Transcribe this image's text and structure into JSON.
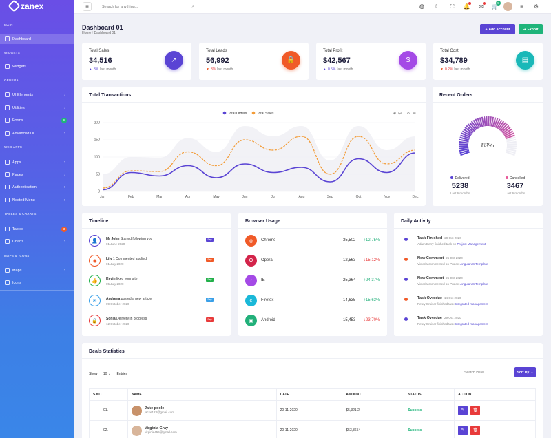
{
  "brand": "zanex",
  "search": {
    "placeholder": "Search for anything..."
  },
  "topbar": {
    "badges": {
      "notifications": "",
      "messages": "",
      "cart": "5"
    }
  },
  "sidebar": {
    "sections": [
      "MAIN",
      "WIDGETS",
      "GENERAL",
      "WEB APPS",
      "TABLES & CHARTS",
      "MAPS & ICONS"
    ],
    "items": [
      {
        "label": "Dashboard",
        "chev": "",
        "badge": ""
      },
      {
        "label": "Widgets",
        "chev": "",
        "badge": ""
      },
      {
        "label": "UI Elements",
        "chev": "›",
        "badge": ""
      },
      {
        "label": "Utilities",
        "chev": "›",
        "badge": ""
      },
      {
        "label": "Forms",
        "chev": "",
        "badge": "6"
      },
      {
        "label": "Advanced UI",
        "chev": "›",
        "badge": ""
      },
      {
        "label": "Apps",
        "chev": "›",
        "badge": ""
      },
      {
        "label": "Pages",
        "chev": "›",
        "badge": ""
      },
      {
        "label": "Authentication",
        "chev": "›",
        "badge": ""
      },
      {
        "label": "Nested Menu",
        "chev": "›",
        "badge": ""
      },
      {
        "label": "Tables",
        "chev": "",
        "badge": "3"
      },
      {
        "label": "Charts",
        "chev": "›",
        "badge": ""
      },
      {
        "label": "Maps",
        "chev": "›",
        "badge": ""
      },
      {
        "label": "Icons",
        "chev": "",
        "badge": ""
      }
    ]
  },
  "page": {
    "title": "Dashboard 01",
    "crumb_home": "Home",
    "crumb_sep": "/",
    "crumb_current": "Dashboard 01",
    "add_account": "Add Account",
    "export": "Export"
  },
  "stats": [
    {
      "label": "Total Sales",
      "value": "34,516",
      "arrow": "▲",
      "change": "3%",
      "suffix": "last month",
      "icon": "↗",
      "color": "#5a44d4"
    },
    {
      "label": "Total Leads",
      "value": "56,992",
      "arrow": "▼",
      "change": "3%",
      "suffix": "last month",
      "icon": "🔒",
      "color": "#f05a28"
    },
    {
      "label": "Total Profit",
      "value": "$42,567",
      "arrow": "▲",
      "change": "0.5%",
      "suffix": "last month",
      "icon": "$",
      "color": "#a44ae6"
    },
    {
      "label": "Total Cost",
      "value": "$34,789",
      "arrow": "▼",
      "change": "0.2%",
      "suffix": "last month",
      "icon": "▤",
      "color": "#1ab8b8"
    }
  ],
  "transactions": {
    "title": "Total Transactions"
  },
  "chart_data": {
    "type": "line",
    "title": "Total Transactions",
    "categories": [
      "Jan",
      "Feb",
      "Mar",
      "Apr",
      "May",
      "Jun",
      "Jul",
      "Aug",
      "Sep",
      "Oct",
      "Nov",
      "Dec"
    ],
    "yticks": [
      "0",
      "50",
      "100",
      "150",
      "200"
    ],
    "ylim": [
      0,
      200
    ],
    "series": [
      {
        "name": "Total Orders",
        "color": "#5a44d4",
        "values": [
          5,
          55,
          45,
          75,
          40,
          80,
          55,
          70,
          28,
          95,
          55,
          112
        ]
      },
      {
        "name": "Total Sales",
        "color": "#f39c38",
        "values": [
          10,
          60,
          58,
          115,
          75,
          150,
          120,
          160,
          50,
          160,
          80,
          120
        ]
      }
    ],
    "legend": "top-center"
  },
  "recent_orders": {
    "title": "Recent Orders",
    "percent": "83%",
    "delivered_label": "Delivered",
    "delivered_value": "5238",
    "delivered_sub": "Last 6 months",
    "cancelled_label": "Cancelled",
    "cancelled_value": "3467",
    "cancelled_sub": "Last 6 months"
  },
  "timeline": {
    "title": "Timeline",
    "items": [
      {
        "who": "Mr John",
        "text": "Started following you",
        "date": "01 June 2020",
        "badge": "Sep",
        "color": "#5a44d4",
        "icon": "👤"
      },
      {
        "who": "Lily",
        "text": "1 Commented applied",
        "date": "01 July 2020",
        "badge": "Sep",
        "color": "#f05a28",
        "icon": "◉"
      },
      {
        "who": "Kevin",
        "text": "liked your site",
        "date": "05 July 2020",
        "badge": "Sep",
        "color": "#22b04a",
        "icon": "👍"
      },
      {
        "who": "Andrena",
        "text": "posted a new article",
        "date": "09 October 2020",
        "badge": "Sep",
        "color": "#3aa0e8",
        "icon": "✉"
      },
      {
        "who": "Sonia",
        "text": "Delivery in progress",
        "date": "12 October 2020",
        "badge": "Sep",
        "color": "#e83a3a",
        "icon": "🔒"
      }
    ]
  },
  "browser": {
    "title": "Browser Usage",
    "items": [
      {
        "name": "Chrome",
        "value": "35,502",
        "change": "12.75%",
        "dir": "up",
        "color": "#f05a28",
        "icon": "◎"
      },
      {
        "name": "Opera",
        "value": "12,563",
        "change": "15.12%",
        "dir": "down",
        "color": "#d3244a",
        "icon": "O"
      },
      {
        "name": "IE",
        "value": "25,364",
        "change": "24.37%",
        "dir": "up",
        "color": "#a44ae6",
        "icon": "◔"
      },
      {
        "name": "Firefox",
        "value": "14,635",
        "change": "15.63%",
        "dir": "up",
        "color": "#1ab8d8",
        "icon": "e"
      },
      {
        "name": "Android",
        "value": "15,453",
        "change": "23.70%",
        "dir": "down",
        "color": "#22b07a",
        "icon": "▣"
      }
    ]
  },
  "activity": {
    "title": "Daily Activity",
    "items": [
      {
        "title": "Task Finished",
        "date": "29 Oct 2020",
        "who": "Adam Berry finished task on",
        "link": "Project Management",
        "color": "#5a44d4"
      },
      {
        "title": "New Comment",
        "date": "25 Oct 2020",
        "who": "Victoria commented on Project",
        "link": "AngularJS Template",
        "color": "#f05a28"
      },
      {
        "title": "New Comment",
        "date": "25 Oct 2020",
        "who": "Victoria commented on Project",
        "link": "AngularJS Template",
        "color": "#5a44d4"
      },
      {
        "title": "Task Overdue",
        "date": "14 Oct 2020",
        "who": "Petey Cruiser finished task",
        "link": "Integrated management",
        "color": "#f05a28"
      },
      {
        "title": "Task Overdue",
        "date": "29 Oct 2020",
        "who": "Petey Cruiser finished task",
        "link": "Integrated management",
        "color": "#5a44d4"
      }
    ]
  },
  "deals": {
    "title": "Deals Statistics",
    "show": "Show",
    "entries_value": "10",
    "entries": "Entries",
    "search_placeholder": "Search Here",
    "sort": "Sort By",
    "headers": [
      "S.NO",
      "NAME",
      "DATE",
      "AMOUNT",
      "STATUS",
      "ACTION"
    ],
    "rows": [
      {
        "no": "01.",
        "name": "Jake poole",
        "email": "jacke123@gmail.com",
        "date": "20-11-2020",
        "amount": "$5,321.2",
        "status": "Success"
      },
      {
        "no": "02.",
        "name": "Virginia Gray",
        "email": "virginia456@gmail.com",
        "date": "20-11-2020",
        "amount": "$53,3654",
        "status": "Success"
      }
    ]
  }
}
